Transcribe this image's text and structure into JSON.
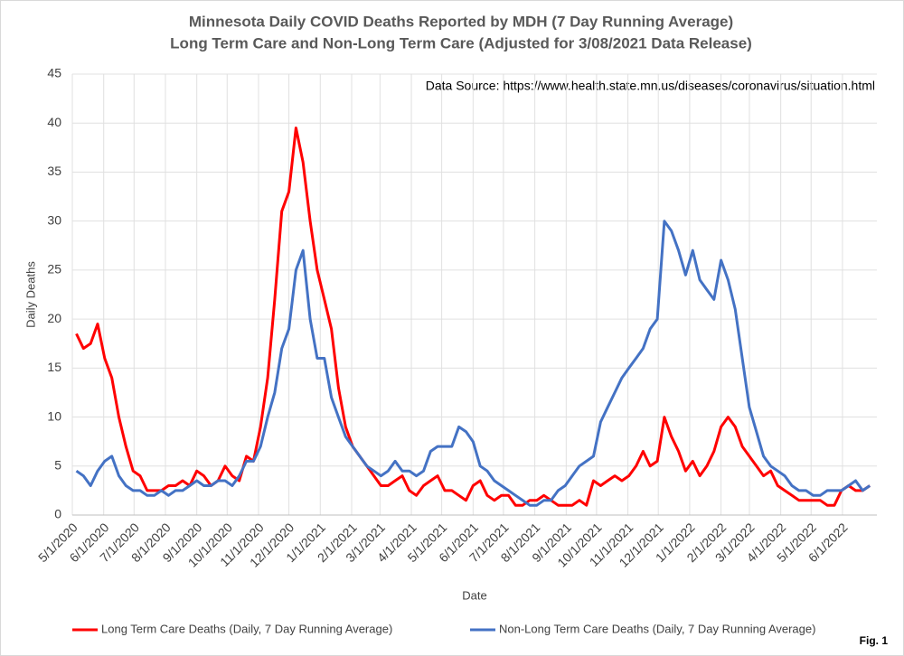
{
  "chart_data": {
    "type": "line",
    "title": "Minnesota Daily COVID Deaths Reported by MDH (7 Day Running Average)",
    "subtitle": "Long Term Care and Non-Long Term Care (Adjusted for 3/08/2021 Data Release)",
    "annotation": "Data Source: https://www.health.state.mn.us/diseases/coronavirus/situation.html",
    "figure_label": "Fig. 1",
    "x_label": "Date",
    "y_label": "Daily Deaths",
    "x": [
      "2020-05-05",
      "2020-05-12",
      "2020-05-19",
      "2020-05-26",
      "2020-06-02",
      "2020-06-09",
      "2020-06-16",
      "2020-06-23",
      "2020-06-30",
      "2020-07-07",
      "2020-07-14",
      "2020-07-21",
      "2020-07-28",
      "2020-08-04",
      "2020-08-11",
      "2020-08-18",
      "2020-08-25",
      "2020-09-01",
      "2020-09-08",
      "2020-09-15",
      "2020-09-22",
      "2020-09-29",
      "2020-10-06",
      "2020-10-13",
      "2020-10-20",
      "2020-10-27",
      "2020-11-03",
      "2020-11-10",
      "2020-11-17",
      "2020-11-24",
      "2020-12-01",
      "2020-12-08",
      "2020-12-15",
      "2020-12-22",
      "2020-12-29",
      "2021-01-05",
      "2021-01-12",
      "2021-01-19",
      "2021-01-26",
      "2021-02-02",
      "2021-02-09",
      "2021-02-16",
      "2021-02-23",
      "2021-03-02",
      "2021-03-09",
      "2021-03-16",
      "2021-03-23",
      "2021-03-30",
      "2021-04-06",
      "2021-04-13",
      "2021-04-20",
      "2021-04-27",
      "2021-05-04",
      "2021-05-11",
      "2021-05-18",
      "2021-05-25",
      "2021-06-01",
      "2021-06-08",
      "2021-06-15",
      "2021-06-22",
      "2021-06-29",
      "2021-07-06",
      "2021-07-13",
      "2021-07-20",
      "2021-07-27",
      "2021-08-03",
      "2021-08-10",
      "2021-08-17",
      "2021-08-24",
      "2021-08-31",
      "2021-09-07",
      "2021-09-14",
      "2021-09-21",
      "2021-09-28",
      "2021-10-05",
      "2021-10-12",
      "2021-10-19",
      "2021-10-26",
      "2021-11-02",
      "2021-11-09",
      "2021-11-16",
      "2021-11-23",
      "2021-11-30",
      "2021-12-07",
      "2021-12-14",
      "2021-12-21",
      "2021-12-28",
      "2022-01-04",
      "2022-01-11",
      "2022-01-18",
      "2022-01-25",
      "2022-02-01",
      "2022-02-08",
      "2022-02-15",
      "2022-02-22",
      "2022-03-01",
      "2022-03-08",
      "2022-03-15",
      "2022-03-22",
      "2022-03-29",
      "2022-04-05",
      "2022-04-12",
      "2022-04-19",
      "2022-04-26",
      "2022-05-03",
      "2022-05-10",
      "2022-05-17",
      "2022-05-24",
      "2022-05-31",
      "2022-06-07",
      "2022-06-14",
      "2022-06-21",
      "2022-06-28"
    ],
    "series": [
      {
        "name": "Long Term Care Deaths (Daily, 7 Day Running Average)",
        "color": "#ff0000",
        "values": [
          18.5,
          17,
          17.5,
          19.5,
          16,
          14,
          10,
          7,
          4.5,
          4,
          2.5,
          2.5,
          2.5,
          3,
          3,
          3.5,
          3,
          4.5,
          4,
          3,
          3.5,
          5,
          4,
          3.5,
          6,
          5.5,
          9,
          14,
          22,
          31,
          33,
          39.5,
          36,
          30,
          25,
          22,
          19,
          13,
          9,
          7,
          6,
          5,
          4,
          3,
          3,
          3.5,
          4,
          2.5,
          2,
          3,
          3.5,
          4,
          2.5,
          2.5,
          2,
          1.5,
          3,
          3.5,
          2,
          1.5,
          2,
          2,
          1,
          1,
          1.5,
          1.5,
          2,
          1.5,
          1,
          1,
          1,
          1.5,
          1,
          3.5,
          3,
          3.5,
          4,
          3.5,
          4,
          5,
          6.5,
          5,
          5.5,
          10,
          8,
          6.5,
          4.5,
          5.5,
          4,
          5,
          6.5,
          9,
          10,
          9,
          7,
          6,
          5,
          4,
          4.5,
          3,
          2.5,
          2,
          1.5,
          1.5,
          1.5,
          1.5,
          1,
          1,
          2.5,
          3,
          2.5,
          2.5,
          3
        ]
      },
      {
        "name": "Non-Long Term Care Deaths (Daily, 7 Day Running Average)",
        "color": "#4472c4",
        "values": [
          4.5,
          4,
          3,
          4.5,
          5.5,
          6,
          4,
          3,
          2.5,
          2.5,
          2,
          2,
          2.5,
          2,
          2.5,
          2.5,
          3,
          3.5,
          3,
          3,
          3.5,
          3.5,
          3,
          4,
          5.5,
          5.5,
          7,
          10,
          12.5,
          17,
          19,
          25,
          27,
          20,
          16,
          16,
          12,
          10,
          8,
          7,
          6,
          5,
          4.5,
          4,
          4.5,
          5.5,
          4.5,
          4.5,
          4,
          4.5,
          6.5,
          7,
          7,
          7,
          9,
          8.5,
          7.5,
          5,
          4.5,
          3.5,
          3,
          2.5,
          2,
          1.5,
          1,
          1,
          1.5,
          1.5,
          2.5,
          3,
          4,
          5,
          5.5,
          6,
          9.5,
          11,
          12.5,
          14,
          15,
          16,
          17,
          19,
          20,
          30,
          29,
          27,
          24.5,
          27,
          24,
          23,
          22,
          26,
          24,
          21,
          16,
          11,
          8.5,
          6,
          5,
          4.5,
          4,
          3,
          2.5,
          2.5,
          2,
          2,
          2.5,
          2.5,
          2.5,
          3,
          3.5,
          2.5,
          3
        ]
      }
    ],
    "xlim": [
      "2020-05-01",
      "2022-07-05"
    ],
    "xticks": [
      {
        "value": "2020-05-01",
        "label": "5/1/2020"
      },
      {
        "value": "2020-06-01",
        "label": "6/1/2020"
      },
      {
        "value": "2020-07-01",
        "label": "7/1/2020"
      },
      {
        "value": "2020-08-01",
        "label": "8/1/2020"
      },
      {
        "value": "2020-09-01",
        "label": "9/1/2020"
      },
      {
        "value": "2020-10-01",
        "label": "10/1/2020"
      },
      {
        "value": "2020-11-01",
        "label": "11/1/2020"
      },
      {
        "value": "2020-12-01",
        "label": "12/1/2020"
      },
      {
        "value": "2021-01-01",
        "label": "1/1/2021"
      },
      {
        "value": "2021-02-01",
        "label": "2/1/2021"
      },
      {
        "value": "2021-03-01",
        "label": "3/1/2021"
      },
      {
        "value": "2021-04-01",
        "label": "4/1/2021"
      },
      {
        "value": "2021-05-01",
        "label": "5/1/2021"
      },
      {
        "value": "2021-06-01",
        "label": "6/1/2021"
      },
      {
        "value": "2021-07-01",
        "label": "7/1/2021"
      },
      {
        "value": "2021-08-01",
        "label": "8/1/2021"
      },
      {
        "value": "2021-09-01",
        "label": "9/1/2021"
      },
      {
        "value": "2021-10-01",
        "label": "10/1/2021"
      },
      {
        "value": "2021-11-01",
        "label": "11/1/2021"
      },
      {
        "value": "2021-12-01",
        "label": "12/1/2021"
      },
      {
        "value": "2022-01-01",
        "label": "1/1/2022"
      },
      {
        "value": "2022-02-01",
        "label": "2/1/2022"
      },
      {
        "value": "2022-03-01",
        "label": "3/1/2022"
      },
      {
        "value": "2022-04-01",
        "label": "4/1/2022"
      },
      {
        "value": "2022-05-01",
        "label": "5/1/2022"
      },
      {
        "value": "2022-06-01",
        "label": "6/1/2022"
      }
    ],
    "ylim": [
      0,
      45
    ],
    "yticks": [
      0,
      5,
      10,
      15,
      20,
      25,
      30,
      35,
      40,
      45
    ],
    "grid": true
  }
}
